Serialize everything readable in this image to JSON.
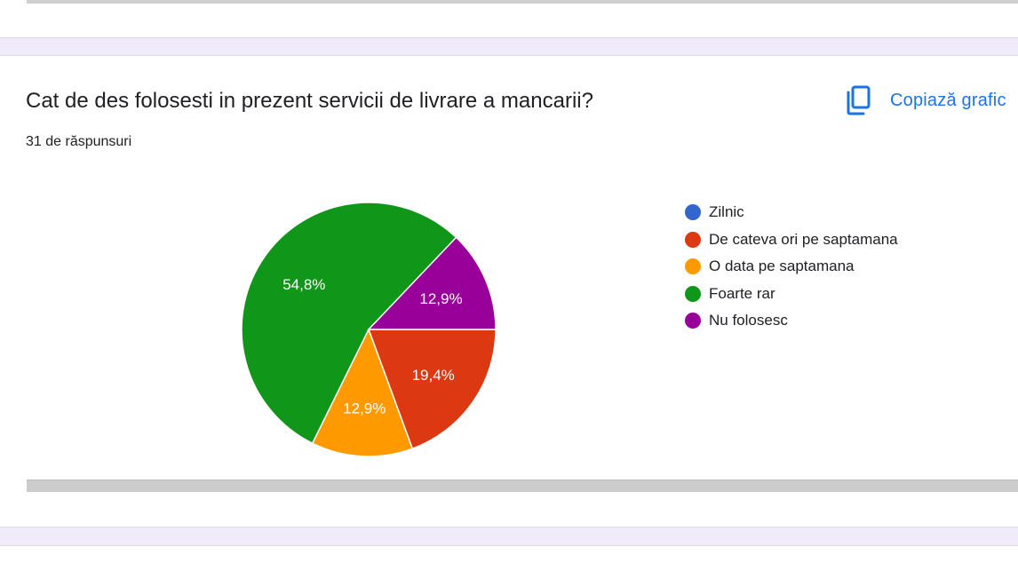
{
  "question": {
    "title": "Cat de des folosesti in prezent servicii de livrare a mancarii?",
    "response_count": "31 de răspunsuri"
  },
  "copy_button": {
    "label": "Copiază grafic",
    "icon": "copy-icon",
    "color": "#1a73e8"
  },
  "chart_data": {
    "type": "pie",
    "categories": [
      "Zilnic",
      "De cateva ori pe saptamana",
      "O data pe saptamana",
      "Foarte rar",
      "Nu folosesc"
    ],
    "values": [
      0,
      19.4,
      12.9,
      54.8,
      12.9
    ],
    "labels": [
      "",
      "19,4%",
      "12,9%",
      "54,8%",
      "12,9%"
    ],
    "colors": [
      "#3366cc",
      "#dc3912",
      "#ff9900",
      "#109618",
      "#990099"
    ],
    "legend_position": "right"
  }
}
